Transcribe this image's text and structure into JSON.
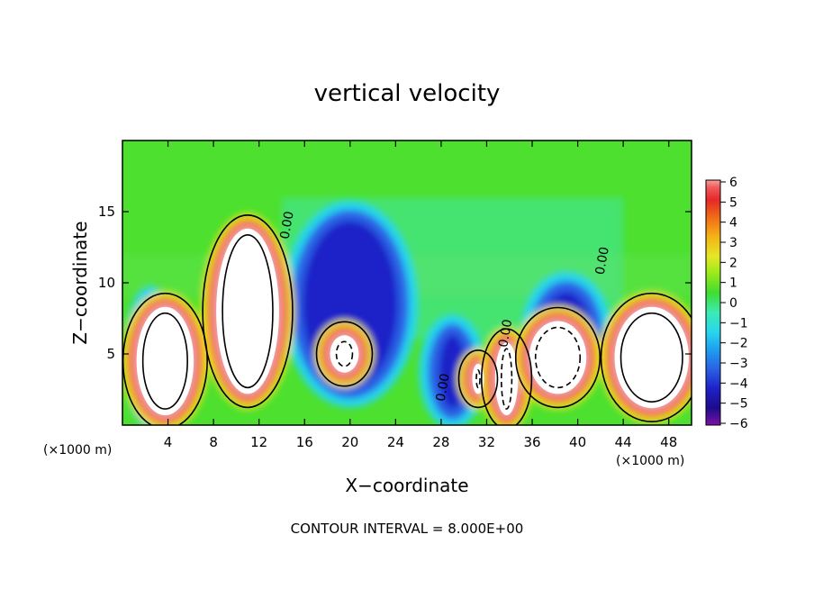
{
  "chart_data": {
    "type": "heatmap",
    "title": "vertical velocity",
    "xlabel": "X−coordinate",
    "ylabel": "Z−coordinate",
    "x_unit_left": "(×1000 m)",
    "x_unit_right": "(×1000 m)",
    "caption": "CONTOUR INTERVAL = 8.000E+00",
    "xlim": [
      0,
      50
    ],
    "ylim": [
      0,
      20
    ],
    "xticks": [
      4,
      8,
      12,
      16,
      20,
      24,
      28,
      32,
      36,
      40,
      44,
      48
    ],
    "yticks": [
      5,
      10,
      15
    ],
    "contour_labels": [
      {
        "text": "0.00",
        "x": 14.8,
        "y": 14.0
      },
      {
        "text": "0.00",
        "x": 28.5,
        "y": 2.6
      },
      {
        "text": "0.00",
        "x": 34.0,
        "y": 6.4
      },
      {
        "text": "0.00",
        "x": 42.5,
        "y": 11.5
      }
    ],
    "colorbar": {
      "ticks": [
        6,
        5,
        4,
        3,
        2,
        1,
        0,
        -1,
        -2,
        -3,
        -4,
        -5,
        -6
      ],
      "tick_labels": [
        "6",
        "5",
        "4",
        "3",
        "2",
        "1",
        "0",
        "−1",
        "−2",
        "−3",
        "−4",
        "−5",
        "−6"
      ],
      "colors": [
        "#7a11a6",
        "#1c0c8a",
        "#1f22c8",
        "#2a62e6",
        "#1ea0f0",
        "#28d6ee",
        "#3cebb2",
        "#3fdc32",
        "#9bea1a",
        "#e6e628",
        "#f5b215",
        "#f06a18",
        "#e6282a",
        "#f05a5a",
        "#f5a0a0"
      ]
    },
    "updrafts": [
      {
        "name": "updraft-1",
        "x_range": [
          1,
          6.5
        ],
        "z_range": [
          0.5,
          8.5
        ],
        "peak": 24
      },
      {
        "name": "updraft-2",
        "x_range": [
          8,
          14
        ],
        "z_range": [
          2,
          14
        ],
        "peak": 40
      },
      {
        "name": "updraft-3",
        "x_range": [
          18,
          21
        ],
        "z_range": [
          3.5,
          6.5
        ],
        "peak": 10
      },
      {
        "name": "updraft-4",
        "x_range": [
          30.5,
          32
        ],
        "z_range": [
          2,
          4.5
        ],
        "peak": 8
      },
      {
        "name": "updraft-5",
        "x_range": [
          32.5,
          35
        ],
        "z_range": [
          0.5,
          6
        ],
        "peak": 14
      },
      {
        "name": "updraft-6",
        "x_range": [
          35.5,
          41
        ],
        "z_range": [
          2,
          7.5
        ],
        "peak": 16
      },
      {
        "name": "updraft-7",
        "x_range": [
          43,
          50
        ],
        "z_range": [
          1,
          8.5
        ],
        "peak": 24
      }
    ],
    "downdrafts": [
      {
        "name": "downdraft-1",
        "x_range": [
          1,
          4
        ],
        "z_range": [
          0.5,
          9
        ],
        "min": -5
      },
      {
        "name": "downdraft-2",
        "x_range": [
          15,
          25
        ],
        "z_range": [
          2,
          15
        ],
        "min": -5
      },
      {
        "name": "downdraft-3",
        "x_range": [
          27,
          31
        ],
        "z_range": [
          0.5,
          7
        ],
        "min": -5
      },
      {
        "name": "downdraft-4",
        "x_range": [
          36,
          42
        ],
        "z_range": [
          3,
          10
        ],
        "min": -4
      }
    ]
  }
}
